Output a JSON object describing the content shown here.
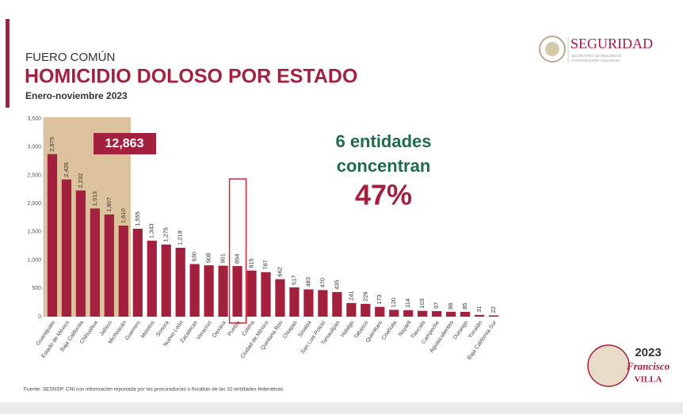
{
  "header": {
    "kicker": "FUERO COMÚN",
    "title": "HOMICIDIO DOLOSO POR ESTADO",
    "subtitle": "Enero-noviembre 2023"
  },
  "logo": {
    "name": "SEGURIDAD",
    "line1": "SECRETARÍA DE SEGURIDAD",
    "line2": "Y PROTECCIÓN CIUDADANA"
  },
  "badge": {
    "year": "2023",
    "name1": "Francisco",
    "name2": "VILLA"
  },
  "footer": "Fuente: SESNSP. CNI con información reportada por las procuradurías o fiscalías de las 32 entidades federativas.",
  "chart_data": {
    "type": "bar",
    "color": "#a3203f",
    "categories": [
      "Guanajuato",
      "Estado de México",
      "Baja California",
      "Chihuahua",
      "Jalisco",
      "Michoacán",
      "Guerrero",
      "Morelos",
      "Sonora",
      "Nuevo León",
      "Zacatecas",
      "Veracruz",
      "Oaxaca",
      "Puebla",
      "Colima",
      "Ciudad de México",
      "Quintana Roo",
      "Chiapas",
      "Sinaloa",
      "San Luis Potosí",
      "Tamaulipas",
      "Hidalgo",
      "Tabasco",
      "Querétaro",
      "Coahuila",
      "Nayarit",
      "Tlaxcala",
      "Campeche",
      "Aguascalientes",
      "Durango",
      "Yucatán",
      "Baja California Sur"
    ],
    "values": [
      2875,
      2426,
      2232,
      1913,
      1807,
      1610,
      1555,
      1343,
      1275,
      1218,
      930,
      908,
      901,
      894,
      815,
      787,
      662,
      517,
      483,
      470,
      435,
      241,
      226,
      173,
      120,
      114,
      103,
      97,
      86,
      85,
      31,
      22
    ],
    "value_labels": [
      "2,875",
      "2,426",
      "2,232",
      "1,913",
      "1,807",
      "1,610",
      "1,555",
      "1,343",
      "1,275",
      "1,218",
      "930",
      "908",
      "901",
      "894",
      "815",
      "787",
      "662",
      "517",
      "483",
      "470",
      "435",
      "241",
      "226",
      "173",
      "120",
      "114",
      "103",
      "97",
      "86",
      "85",
      "31",
      "22"
    ],
    "ylim": [
      0,
      3500
    ],
    "yticks": [
      0,
      500,
      {
        "value": 1000,
        "label": "1,000"
      },
      {
        "value": 1500,
        "label": "1,500"
      },
      {
        "value": 2000,
        "label": "2,000"
      },
      {
        "value": 2500,
        "label": "2,500"
      },
      {
        "value": 3000,
        "label": "3,000"
      },
      {
        "value": 3500,
        "label": "3,500"
      }
    ],
    "annotations": [
      "12,863",
      "6 entidades",
      "concentran",
      "47%"
    ]
  }
}
